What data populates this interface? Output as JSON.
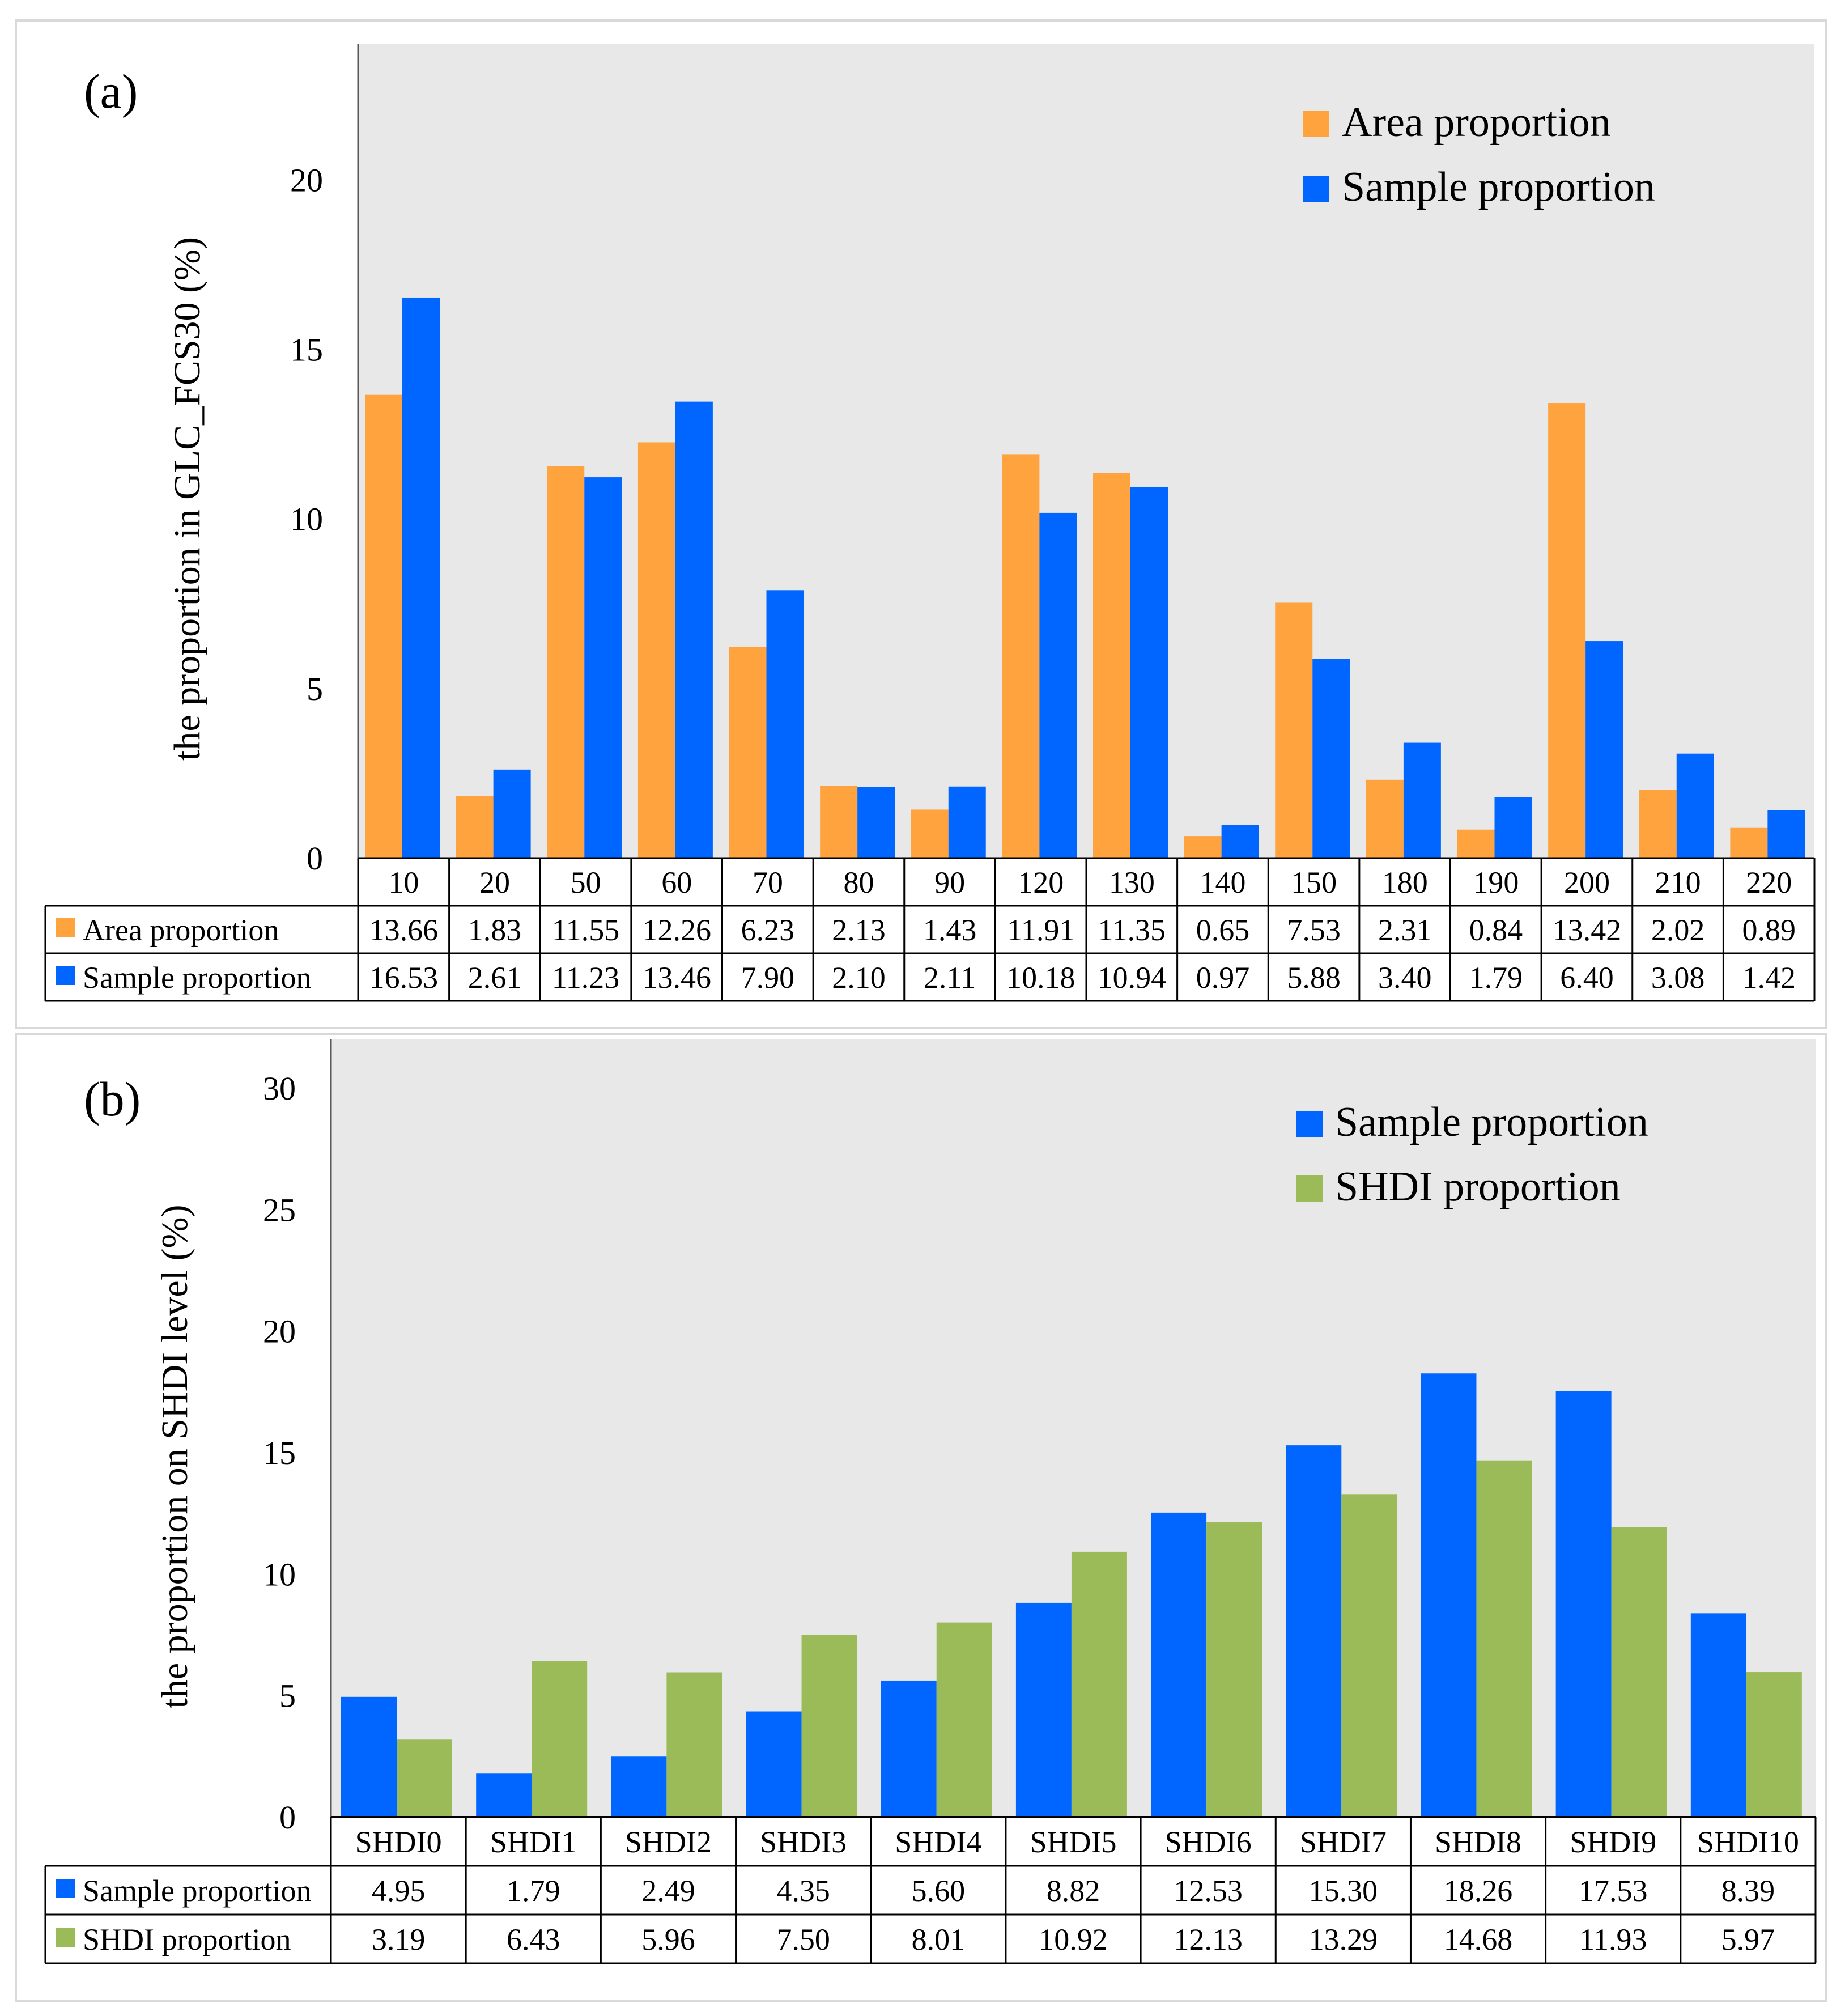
{
  "colors": {
    "orange": "#FFA33F",
    "blue": "#0066FF",
    "green": "#9BBB59",
    "plot_bg": "#E8E8E8"
  },
  "chart_data": [
    {
      "panel": "(a)",
      "type": "bar",
      "ylabel": "the proportion in GLC_FCS30 (%)",
      "ylim": [
        0,
        24
      ],
      "yticks": [
        "0",
        "5",
        "10",
        "15",
        "20"
      ],
      "legend_placement": "top-right",
      "categories": [
        "10",
        "20",
        "50",
        "60",
        "70",
        "80",
        "90",
        "120",
        "130",
        "140",
        "150",
        "180",
        "190",
        "200",
        "210",
        "220"
      ],
      "series": [
        {
          "name": "Area proportion",
          "color": "#FFA33F",
          "values": [
            13.66,
            1.83,
            11.55,
            12.26,
            6.23,
            2.13,
            1.43,
            11.91,
            11.35,
            0.65,
            7.53,
            2.31,
            0.84,
            13.42,
            2.02,
            0.89
          ],
          "labels": [
            "13.66",
            "1.83",
            "11.55",
            "12.26",
            "6.23",
            "2.13",
            "1.43",
            "11.91",
            "11.35",
            "0.65",
            "7.53",
            "2.31",
            "0.84",
            "13.42",
            "2.02",
            "0.89"
          ]
        },
        {
          "name": "Sample proportion",
          "color": "#0066FF",
          "values": [
            16.53,
            2.61,
            11.23,
            13.46,
            7.9,
            2.1,
            2.11,
            10.18,
            10.94,
            0.97,
            5.88,
            3.4,
            1.79,
            6.4,
            3.08,
            1.42
          ],
          "labels": [
            "16.53",
            "2.61",
            "11.23",
            "13.46",
            "7.90",
            "2.10",
            "2.11",
            "10.18",
            "10.94",
            "0.97",
            "5.88",
            "3.40",
            "1.79",
            "6.40",
            "3.08",
            "1.42"
          ]
        }
      ]
    },
    {
      "panel": "(b)",
      "type": "bar",
      "ylabel": "the proportion on SHDI level (%)",
      "ylim": [
        0,
        30
      ],
      "yticks": [
        "0",
        "5",
        "10",
        "15",
        "20",
        "25",
        "30"
      ],
      "legend_placement": "top-right",
      "categories": [
        "SHDI0",
        "SHDI1",
        "SHDI2",
        "SHDI3",
        "SHDI4",
        "SHDI5",
        "SHDI6",
        "SHDI7",
        "SHDI8",
        "SHDI9",
        "SHDI10"
      ],
      "series": [
        {
          "name": "Sample proportion",
          "color": "#0066FF",
          "values": [
            4.95,
            1.79,
            2.49,
            4.35,
            5.6,
            8.82,
            12.53,
            15.3,
            18.26,
            17.53,
            8.39
          ],
          "labels": [
            "4.95",
            "1.79",
            "2.49",
            "4.35",
            "5.60",
            "8.82",
            "12.53",
            "15.30",
            "18.26",
            "17.53",
            "8.39"
          ]
        },
        {
          "name": "SHDI proportion",
          "color": "#9BBB59",
          "values": [
            3.19,
            6.43,
            5.96,
            7.5,
            8.01,
            10.92,
            12.13,
            13.29,
            14.68,
            11.93,
            5.97
          ],
          "labels": [
            "3.19",
            "6.43",
            "5.96",
            "7.50",
            "8.01",
            "10.92",
            "12.13",
            "13.29",
            "14.68",
            "11.93",
            "5.97"
          ]
        }
      ]
    }
  ]
}
